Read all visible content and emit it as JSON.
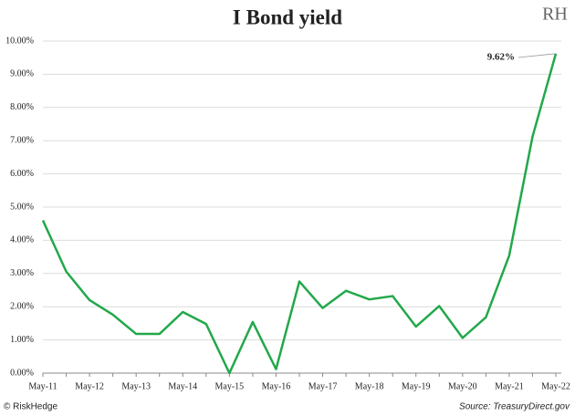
{
  "chart_data": {
    "type": "line",
    "title": "I Bond yield",
    "logo": "RH",
    "categories": [
      "May-11",
      null,
      "May-12",
      null,
      "May-13",
      null,
      "May-14",
      null,
      "May-15",
      null,
      "May-16",
      null,
      "May-17",
      null,
      "May-18",
      null,
      "May-19",
      null,
      "May-20",
      null,
      "May-21",
      null,
      "May-22"
    ],
    "series": [
      {
        "name": "I Bond yield",
        "color": "#22a84a",
        "values": [
          4.6,
          3.06,
          2.2,
          1.76,
          1.18,
          1.18,
          1.84,
          1.48,
          0,
          1.54,
          0.12,
          2.76,
          1.96,
          2.48,
          2.22,
          2.32,
          1.4,
          2.02,
          1.06,
          1.68,
          3.54,
          7.12,
          9.62
        ]
      }
    ],
    "annotations": [
      {
        "text": "9.62%"
      }
    ],
    "ylim": [
      0,
      10
    ],
    "yticks": [
      {
        "value": 0,
        "label": "0.00%"
      },
      {
        "value": 1,
        "label": "1.00%"
      },
      {
        "value": 2,
        "label": "2.00%"
      },
      {
        "value": 3,
        "label": "3.00%"
      },
      {
        "value": 4,
        "label": "4.00%"
      },
      {
        "value": 5,
        "label": "5.00%"
      },
      {
        "value": 6,
        "label": "6.00%"
      },
      {
        "value": 7,
        "label": "7.00%"
      },
      {
        "value": 8,
        "label": "8.00%"
      },
      {
        "value": 9,
        "label": "9.00%"
      },
      {
        "value": 10,
        "label": "10.00%"
      }
    ],
    "grid": true,
    "footer_left": "© RiskHedge",
    "footer_right": "Source: TreasuryDirect.gov"
  }
}
